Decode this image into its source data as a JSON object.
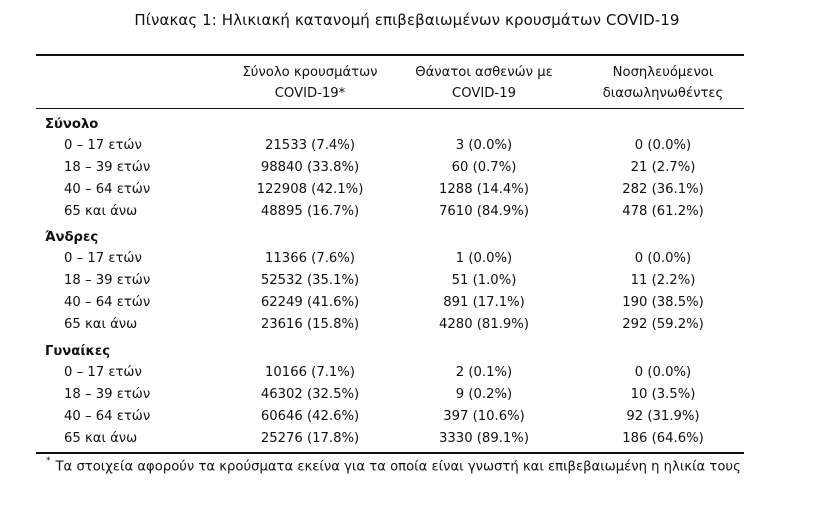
{
  "caption": "Πίνακας 1: Ηλικιακή κατανομή επιβεβαιωμένων κρουσμάτων COVID-19",
  "headers": [
    [
      "Σύνολο κρουσμάτων",
      "COVID-19*"
    ],
    [
      "Θάνατοι ασθενών με",
      "COVID-19"
    ],
    [
      "Νοσηλευόμενοι",
      "διασωληνωθέντες"
    ]
  ],
  "groups": [
    {
      "title": "Σύνολο",
      "rows": [
        [
          "0 – 17 ετών",
          "21533 (7.4%)",
          "3 (0.0%)",
          "0 (0.0%)"
        ],
        [
          "18 – 39 ετών",
          "98840 (33.8%)",
          "60 (0.7%)",
          "21 (2.7%)"
        ],
        [
          "40 – 64 ετών",
          "122908 (42.1%)",
          "1288 (14.4%)",
          "282 (36.1%)"
        ],
        [
          "65 και άνω",
          "48895 (16.7%)",
          "7610 (84.9%)",
          "478 (61.2%)"
        ]
      ]
    },
    {
      "title": "Άνδρες",
      "rows": [
        [
          "0 – 17 ετών",
          "11366 (7.6%)",
          "1 (0.0%)",
          "0 (0.0%)"
        ],
        [
          "18 – 39 ετών",
          "52532 (35.1%)",
          "51 (1.0%)",
          "11 (2.2%)"
        ],
        [
          "40 – 64 ετών",
          "62249 (41.6%)",
          "891 (17.1%)",
          "190 (38.5%)"
        ],
        [
          "65 και άνω",
          "23616 (15.8%)",
          "4280 (81.9%)",
          "292 (59.2%)"
        ]
      ]
    },
    {
      "title": "Γυναίκες",
      "rows": [
        [
          "0 – 17 ετών",
          "10166 (7.1%)",
          "2 (0.1%)",
          "0 (0.0%)"
        ],
        [
          "18 – 39 ετών",
          "46302 (32.5%)",
          "9 (0.2%)",
          "10 (3.5%)"
        ],
        [
          "40 – 64 ετών",
          "60646 (42.6%)",
          "397 (10.6%)",
          "92 (31.9%)"
        ],
        [
          "65 και άνω",
          "25276 (17.8%)",
          "3330 (89.1%)",
          "186 (64.6%)"
        ]
      ]
    }
  ],
  "footnote": {
    "mark": "*",
    "text": "Τα στοιχεία αφορούν τα κρούσματα εκείνα για τα οποία είναι γνωστή και επιβεβαιωμένη η ηλικία τους"
  }
}
